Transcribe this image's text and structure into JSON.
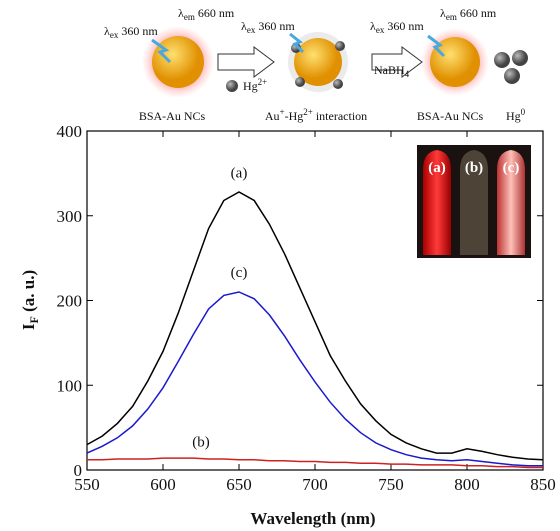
{
  "scheme": {
    "excitation_1": [
      "λ",
      "ex",
      " 360 nm"
    ],
    "emission_1": [
      "λ",
      "em",
      " 660 nm"
    ],
    "excitation_2": [
      "λ",
      "ex",
      " 360 nm"
    ],
    "mercury_ion": [
      "Hg",
      "2+"
    ],
    "excitation_3": [
      "λ",
      "ex",
      " 360 nm"
    ],
    "emission_3": [
      "λ",
      "em",
      " 660 nm"
    ],
    "reductant": [
      "NaBH",
      "4"
    ],
    "label_1": "BSA-Au NCs",
    "label_2": [
      "Au",
      "+",
      "-Hg",
      "2+",
      " interaction"
    ],
    "label_3": "BSA-Au NCs",
    "label_4": [
      "Hg",
      "0"
    ]
  },
  "chart_data": {
    "type": "line",
    "x": [
      550,
      560,
      570,
      580,
      590,
      600,
      610,
      620,
      630,
      640,
      650,
      660,
      670,
      680,
      690,
      700,
      710,
      720,
      730,
      740,
      750,
      760,
      770,
      780,
      790,
      800,
      810,
      820,
      830,
      840,
      850
    ],
    "series": [
      {
        "name": "(a)",
        "color": "#000000",
        "values": [
          30,
          40,
          55,
          75,
          105,
          140,
          185,
          235,
          285,
          318,
          328,
          318,
          290,
          255,
          215,
          175,
          135,
          105,
          78,
          58,
          42,
          32,
          25,
          20,
          20,
          25,
          22,
          18,
          15,
          13,
          12
        ]
      },
      {
        "name": "(b)",
        "color": "#cc2222",
        "values": [
          12,
          12,
          13,
          13,
          13,
          14,
          14,
          14,
          13,
          13,
          12,
          12,
          11,
          11,
          10,
          10,
          9,
          9,
          8,
          8,
          7,
          7,
          6,
          6,
          6,
          5,
          5,
          4,
          4,
          3,
          3
        ]
      },
      {
        "name": "(c)",
        "color": "#1a1acc",
        "values": [
          20,
          28,
          38,
          52,
          72,
          97,
          128,
          160,
          190,
          206,
          210,
          202,
          183,
          158,
          130,
          104,
          80,
          60,
          44,
          32,
          24,
          18,
          14,
          12,
          11,
          12,
          10,
          8,
          6,
          5,
          5
        ]
      }
    ],
    "xlabel": "Wavelength (nm)",
    "ylabel": [
      "I",
      "F",
      " (a. u.)"
    ],
    "xlim": [
      550,
      850
    ],
    "ylim": [
      0,
      400
    ],
    "xticks": [
      550,
      600,
      650,
      700,
      750,
      800,
      850
    ],
    "yticks": [
      0,
      100,
      200,
      300,
      400
    ],
    "inset_labels": [
      "(a)",
      "(b)",
      "(c)"
    ]
  }
}
